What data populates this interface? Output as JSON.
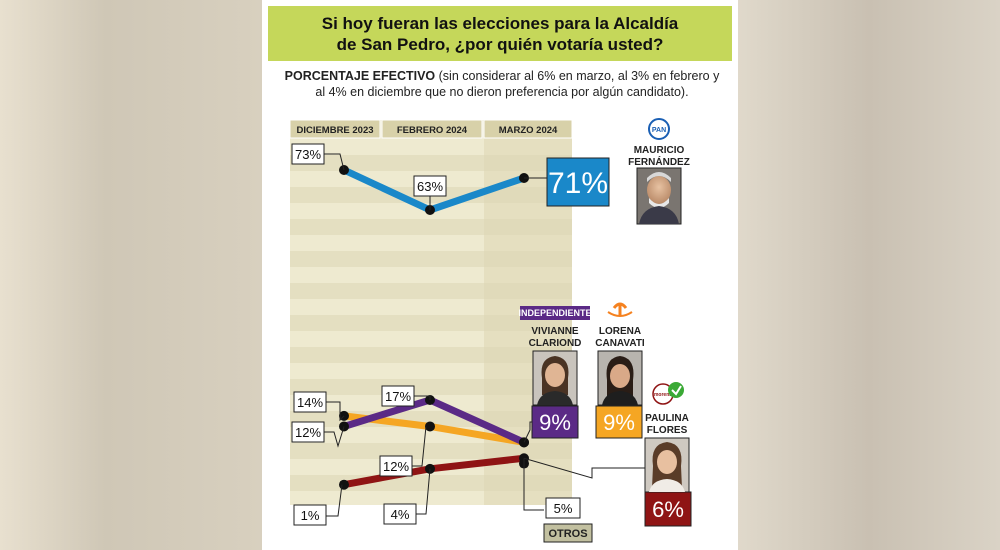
{
  "title": "Si hoy fueran las elecciones para la Alcaldía de San Pedro, ¿por quién votaría usted?",
  "subtitle_bold": "PORCENTAJE EFECTIVO",
  "subtitle_rest": " (sin considerar al 6% en marzo, al 3% en febrero y al 4% en diciembre que no dieron preferencia por algún candidato).",
  "colors": {
    "title_bg": "#c5d75a",
    "fernandez": "#1a88c9",
    "clariond": "#5b2a86",
    "canavati": "#f5a623",
    "flores": "#8f1414",
    "otros": "#9a9a80"
  },
  "candidates": {
    "fernandez": {
      "party": "PAN",
      "name_line1": "MAURICIO",
      "name_line2": "FERNÁNDEZ",
      "final_label": "71%"
    },
    "clariond": {
      "party": "INDEPENDIENTE",
      "name_line1": "VIVIANNE",
      "name_line2": "CLARIOND",
      "final_label": "9%"
    },
    "canavati": {
      "party_icon": "mc-logo-icon",
      "name_line1": "LORENA",
      "name_line2": "CANAVATI",
      "final_label": "9%"
    },
    "flores": {
      "party_icon": "morena-pvem-logo-icon",
      "name_line1": "PAULINA",
      "name_line2": "FLORES",
      "final_label": "6%"
    },
    "otros": {
      "name": "OTROS",
      "final_label": "5%"
    }
  },
  "chart_data": {
    "type": "line",
    "categories": [
      "DICIEMBRE 2023",
      "FEBRERO 2024",
      "MARZO 2024"
    ],
    "series": [
      {
        "key": "fernandez",
        "name": "MAURICIO FERNÁNDEZ",
        "values": [
          73,
          63,
          71
        ],
        "labels": [
          "73%",
          "63%",
          "71%"
        ]
      },
      {
        "key": "clariond",
        "name": "VIVIANNE CLARIOND",
        "values": [
          12,
          17,
          9
        ],
        "labels": [
          "12%",
          "17%",
          "9%"
        ]
      },
      {
        "key": "canavati",
        "name": "LORENA CANAVATI",
        "values": [
          14,
          12,
          9
        ],
        "labels": [
          "14%",
          "12%",
          "9%"
        ]
      },
      {
        "key": "flores",
        "name": "PAULINA FLORES",
        "values": [
          1,
          4,
          6
        ],
        "labels": [
          "1%",
          "4%",
          "6%"
        ]
      },
      {
        "key": "otros",
        "name": "OTROS",
        "values": [
          null,
          null,
          5
        ],
        "labels": [
          "",
          "",
          "5%"
        ]
      }
    ]
  }
}
